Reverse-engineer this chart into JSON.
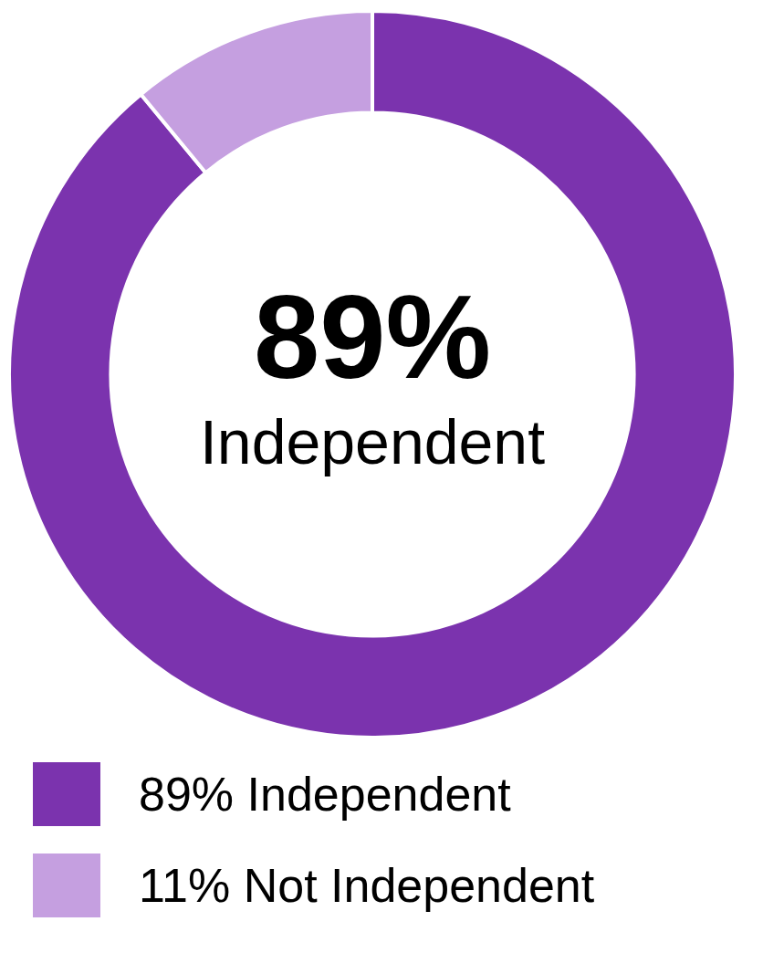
{
  "chart_data": {
    "type": "donut",
    "categories": [
      "89% Independent",
      "11% Not Independent"
    ],
    "values": [
      89,
      11
    ],
    "colors": [
      "#7b33ae",
      "#c59fe0"
    ],
    "annotations": [
      "89%",
      "Independent"
    ],
    "legend": "bottom"
  }
}
